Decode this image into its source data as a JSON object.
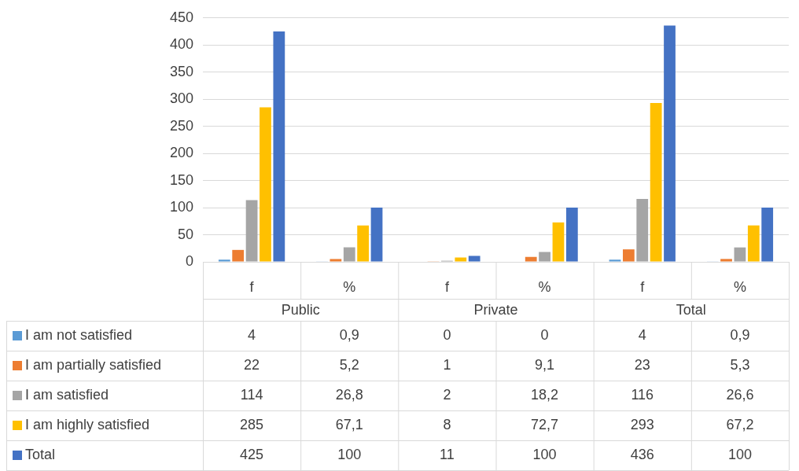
{
  "chart_data": {
    "type": "bar",
    "categories": [
      "f",
      "%",
      "f",
      "%",
      "f",
      "%"
    ],
    "annotations": [
      "Public",
      "Private",
      "Total"
    ],
    "series": [
      {
        "name": "I am not satisfied",
        "color": "#5b9bd5",
        "values": [
          4,
          0.9,
          0,
          0,
          4,
          0.9
        ],
        "value_labels": [
          "4",
          "0,9",
          "0",
          "0",
          "4",
          "0,9"
        ]
      },
      {
        "name": "I am partially satisfied",
        "color": "#ed7d31",
        "values": [
          22,
          5.2,
          1,
          9.1,
          23,
          5.3
        ],
        "value_labels": [
          "22",
          "5,2",
          "1",
          "9,1",
          "23",
          "5,3"
        ]
      },
      {
        "name": "I am satisfied",
        "color": "#a5a5a5",
        "values": [
          114,
          26.8,
          2,
          18.2,
          116,
          26.6
        ],
        "value_labels": [
          "114",
          "26,8",
          "2",
          "18,2",
          "116",
          "26,6"
        ]
      },
      {
        "name": "I am highly satisfied",
        "color": "#ffc000",
        "values": [
          285,
          67.1,
          8,
          72.7,
          293,
          67.2
        ],
        "value_labels": [
          "285",
          "67,1",
          "8",
          "72,7",
          "293",
          "67,2"
        ]
      },
      {
        "name": "Total",
        "color": "#4472c4",
        "values": [
          425,
          100,
          11,
          100,
          436,
          100
        ],
        "value_labels": [
          "425",
          "100",
          "11",
          "100",
          "436",
          "100"
        ]
      }
    ],
    "ylim": [
      0,
      450
    ],
    "yticks": [
      0,
      50,
      100,
      150,
      200,
      250,
      300,
      350,
      400,
      450
    ],
    "grid": true,
    "legend": "bottom left"
  }
}
